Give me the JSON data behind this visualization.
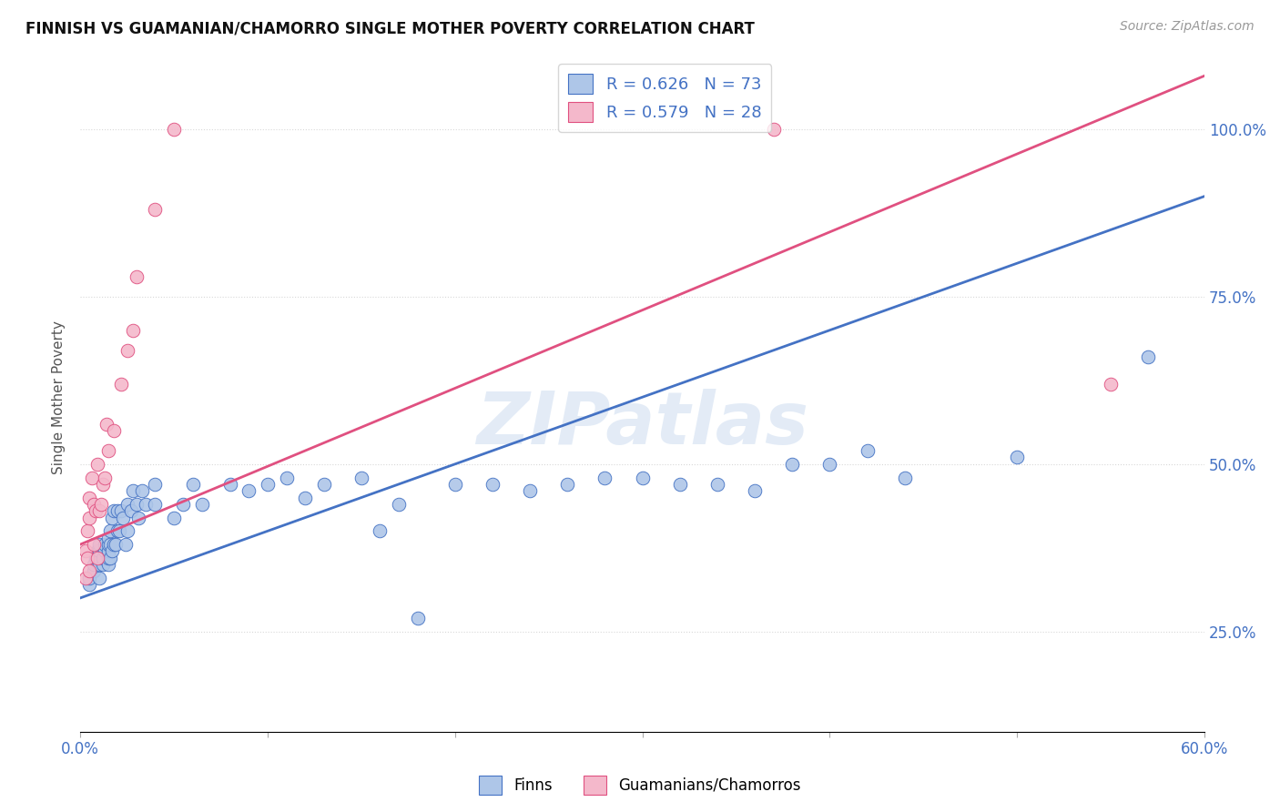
{
  "title": "FINNISH VS GUAMANIAN/CHAMORRO SINGLE MOTHER POVERTY CORRELATION CHART",
  "source": "Source: ZipAtlas.com",
  "ylabel": "Single Mother Poverty",
  "yticks": [
    0.25,
    0.5,
    0.75,
    1.0
  ],
  "ytick_labels": [
    "25.0%",
    "50.0%",
    "75.0%",
    "100.0%"
  ],
  "xlim": [
    0.0,
    0.6
  ],
  "ylim": [
    0.1,
    1.1
  ],
  "watermark": "ZIPatlas",
  "legend_finn_R": "0.626",
  "legend_finn_N": "73",
  "legend_guam_R": "0.579",
  "legend_guam_N": "28",
  "finn_color": "#aec6e8",
  "guam_color": "#f4b8cb",
  "finn_line_color": "#4472c4",
  "guam_line_color": "#e05080",
  "finn_scatter_x": [
    0.005,
    0.005,
    0.007,
    0.007,
    0.008,
    0.009,
    0.01,
    0.01,
    0.01,
    0.01,
    0.01,
    0.012,
    0.012,
    0.013,
    0.013,
    0.015,
    0.015,
    0.015,
    0.015,
    0.015,
    0.016,
    0.016,
    0.016,
    0.017,
    0.017,
    0.018,
    0.018,
    0.019,
    0.02,
    0.02,
    0.021,
    0.022,
    0.023,
    0.024,
    0.025,
    0.025,
    0.027,
    0.028,
    0.03,
    0.031,
    0.033,
    0.035,
    0.04,
    0.04,
    0.05,
    0.055,
    0.06,
    0.065,
    0.08,
    0.09,
    0.1,
    0.11,
    0.12,
    0.13,
    0.15,
    0.16,
    0.17,
    0.18,
    0.2,
    0.22,
    0.24,
    0.26,
    0.28,
    0.3,
    0.32,
    0.34,
    0.36,
    0.38,
    0.4,
    0.42,
    0.44,
    0.5,
    0.57
  ],
  "finn_scatter_y": [
    0.32,
    0.33,
    0.34,
    0.35,
    0.36,
    0.37,
    0.33,
    0.35,
    0.36,
    0.37,
    0.38,
    0.35,
    0.36,
    0.37,
    0.38,
    0.35,
    0.36,
    0.37,
    0.38,
    0.39,
    0.36,
    0.38,
    0.4,
    0.37,
    0.42,
    0.38,
    0.43,
    0.38,
    0.4,
    0.43,
    0.4,
    0.43,
    0.42,
    0.38,
    0.4,
    0.44,
    0.43,
    0.46,
    0.44,
    0.42,
    0.46,
    0.44,
    0.47,
    0.44,
    0.42,
    0.44,
    0.47,
    0.44,
    0.47,
    0.46,
    0.47,
    0.48,
    0.45,
    0.47,
    0.48,
    0.4,
    0.44,
    0.27,
    0.47,
    0.47,
    0.46,
    0.47,
    0.48,
    0.48,
    0.47,
    0.47,
    0.46,
    0.5,
    0.5,
    0.52,
    0.48,
    0.51,
    0.66
  ],
  "guam_scatter_x": [
    0.003,
    0.003,
    0.004,
    0.004,
    0.005,
    0.005,
    0.005,
    0.006,
    0.007,
    0.007,
    0.008,
    0.009,
    0.009,
    0.01,
    0.011,
    0.012,
    0.013,
    0.014,
    0.015,
    0.018,
    0.022,
    0.025,
    0.028,
    0.03,
    0.04,
    0.05,
    0.37,
    0.55
  ],
  "guam_scatter_y": [
    0.33,
    0.37,
    0.36,
    0.4,
    0.34,
    0.42,
    0.45,
    0.48,
    0.38,
    0.44,
    0.43,
    0.36,
    0.5,
    0.43,
    0.44,
    0.47,
    0.48,
    0.56,
    0.52,
    0.55,
    0.62,
    0.67,
    0.7,
    0.78,
    0.88,
    1.0,
    1.0,
    0.62
  ],
  "background_color": "#ffffff",
  "grid_color": "#d8d8d8",
  "finn_trend": [
    0.0,
    0.6,
    0.3,
    0.9
  ],
  "guam_trend": [
    0.0,
    0.6,
    0.38,
    1.08
  ]
}
